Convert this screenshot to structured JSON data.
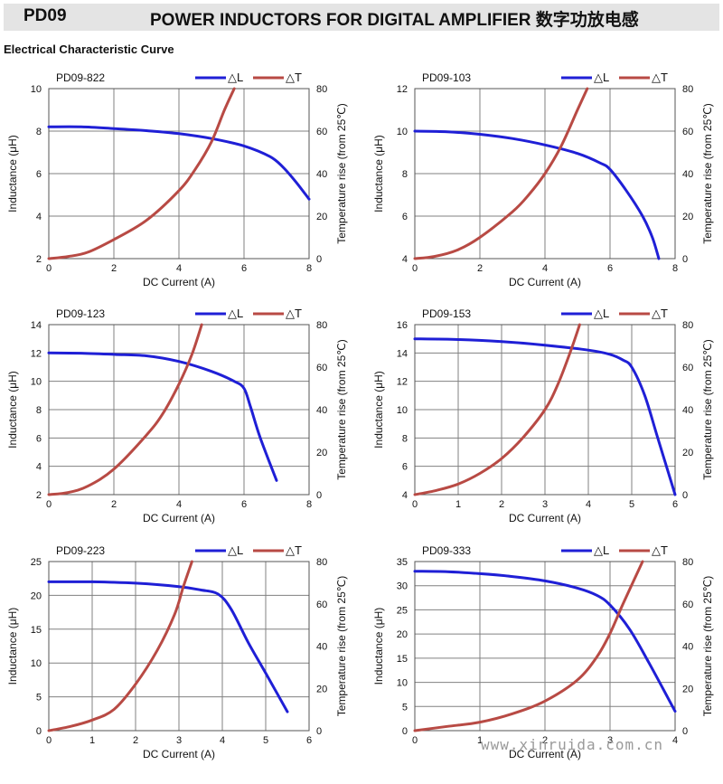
{
  "header": {
    "model": "PD09",
    "title": "POWER INDUCTORS FOR DIGITAL AMPLIFIER  数字功放电感"
  },
  "section_title": "Electrical Characteristic Curve",
  "watermark": "www.xinruida.com.cn",
  "colors": {
    "inductance": "#1f1fd6",
    "temperature": "#b84a44",
    "grid": "#808080",
    "axis": "#555555"
  },
  "legend": {
    "inductance": "△L",
    "temperature": "△T"
  },
  "axis_labels": {
    "x": "DC Current (A)",
    "y_left": "Inductance (μH)",
    "y_right": "Temperature rise (from 25℃)"
  },
  "chart_data": [
    {
      "type": "line",
      "title": "PD09-822",
      "xlim": [
        0,
        8
      ],
      "xticks": [
        0,
        2,
        4,
        6,
        8
      ],
      "ylim": [
        2,
        10
      ],
      "yticks": [
        2,
        4,
        6,
        8,
        10
      ],
      "y2lim": [
        0,
        80
      ],
      "y2ticks": [
        0,
        20,
        40,
        60,
        80
      ],
      "series": [
        {
          "name": "△L",
          "axis": "left",
          "points": [
            [
              0,
              8.2
            ],
            [
              1,
              8.2
            ],
            [
              2,
              8.12
            ],
            [
              3,
              8.02
            ],
            [
              4,
              7.88
            ],
            [
              5,
              7.65
            ],
            [
              6,
              7.3
            ],
            [
              6.8,
              6.8
            ],
            [
              7.2,
              6.3
            ],
            [
              7.6,
              5.6
            ],
            [
              8,
              4.8
            ]
          ]
        },
        {
          "name": "△T",
          "axis": "right",
          "points": [
            [
              0,
              0
            ],
            [
              0.6,
              1
            ],
            [
              1.2,
              3
            ],
            [
              2,
              9
            ],
            [
              3,
              18
            ],
            [
              4,
              32
            ],
            [
              4.5,
              42
            ],
            [
              5,
              55
            ],
            [
              5.4,
              70
            ],
            [
              5.7,
              80
            ]
          ]
        }
      ]
    },
    {
      "type": "line",
      "title": "PD09-103",
      "xlim": [
        0,
        8
      ],
      "xticks": [
        0,
        2,
        4,
        6,
        8
      ],
      "ylim": [
        4,
        12
      ],
      "yticks": [
        4,
        6,
        8,
        10,
        12
      ],
      "y2lim": [
        0,
        80
      ],
      "y2ticks": [
        0,
        20,
        40,
        60,
        80
      ],
      "series": [
        {
          "name": "△L",
          "axis": "left",
          "points": [
            [
              0,
              10.0
            ],
            [
              1,
              9.97
            ],
            [
              2,
              9.85
            ],
            [
              3,
              9.65
            ],
            [
              4,
              9.35
            ],
            [
              5,
              8.95
            ],
            [
              5.7,
              8.5
            ],
            [
              6,
              8.2
            ],
            [
              6.5,
              7.2
            ],
            [
              7,
              6.0
            ],
            [
              7.3,
              5.0
            ],
            [
              7.5,
              4.0
            ]
          ]
        },
        {
          "name": "△T",
          "axis": "right",
          "points": [
            [
              0,
              0
            ],
            [
              0.6,
              1
            ],
            [
              1.3,
              4
            ],
            [
              2,
              10
            ],
            [
              3,
              22
            ],
            [
              3.5,
              30
            ],
            [
              4,
              40
            ],
            [
              4.5,
              53
            ],
            [
              5,
              70
            ],
            [
              5.3,
              80
            ]
          ]
        }
      ]
    },
    {
      "type": "line",
      "title": "PD09-123",
      "xlim": [
        0,
        8
      ],
      "xticks": [
        0,
        2,
        4,
        6,
        8
      ],
      "ylim": [
        2,
        14
      ],
      "yticks": [
        2,
        4,
        6,
        8,
        10,
        12,
        14
      ],
      "y2lim": [
        0,
        80
      ],
      "y2ticks": [
        0,
        20,
        40,
        60,
        80
      ],
      "series": [
        {
          "name": "△L",
          "axis": "left",
          "points": [
            [
              0,
              12.0
            ],
            [
              1,
              11.98
            ],
            [
              2,
              11.9
            ],
            [
              3,
              11.8
            ],
            [
              4,
              11.4
            ],
            [
              5,
              10.7
            ],
            [
              5.7,
              10.0
            ],
            [
              6,
              9.5
            ],
            [
              6.2,
              8.2
            ],
            [
              6.5,
              6.0
            ],
            [
              7,
              3.0
            ]
          ]
        },
        {
          "name": "△T",
          "axis": "right",
          "points": [
            [
              0,
              0
            ],
            [
              0.6,
              1
            ],
            [
              1.2,
              4
            ],
            [
              2,
              12
            ],
            [
              3,
              28
            ],
            [
              3.5,
              38
            ],
            [
              4,
              52
            ],
            [
              4.4,
              66
            ],
            [
              4.7,
              80
            ]
          ]
        }
      ]
    },
    {
      "type": "line",
      "title": "PD09-153",
      "xlim": [
        0,
        6
      ],
      "xticks": [
        0,
        1,
        2,
        3,
        4,
        5,
        6
      ],
      "ylim": [
        4,
        16
      ],
      "yticks": [
        4,
        6,
        8,
        10,
        12,
        14,
        16
      ],
      "y2lim": [
        0,
        80
      ],
      "y2ticks": [
        0,
        20,
        40,
        60,
        80
      ],
      "series": [
        {
          "name": "△L",
          "axis": "left",
          "points": [
            [
              0,
              15.0
            ],
            [
              1,
              14.95
            ],
            [
              2,
              14.8
            ],
            [
              3,
              14.55
            ],
            [
              4,
              14.2
            ],
            [
              4.5,
              13.9
            ],
            [
              4.8,
              13.5
            ],
            [
              5,
              13.0
            ],
            [
              5.3,
              11.0
            ],
            [
              5.6,
              8.0
            ],
            [
              6,
              4.0
            ]
          ]
        },
        {
          "name": "△T",
          "axis": "right",
          "points": [
            [
              0,
              0
            ],
            [
              0.5,
              2
            ],
            [
              1,
              5
            ],
            [
              1.5,
              10
            ],
            [
              2,
              17
            ],
            [
              2.5,
              27
            ],
            [
              3,
              40
            ],
            [
              3.3,
              52
            ],
            [
              3.6,
              68
            ],
            [
              3.8,
              80
            ]
          ]
        }
      ]
    },
    {
      "type": "line",
      "title": "PD09-223",
      "xlim": [
        0,
        6
      ],
      "xticks": [
        0,
        1,
        2,
        3,
        4,
        5,
        6
      ],
      "ylim": [
        0,
        25
      ],
      "yticks": [
        0,
        5,
        10,
        15,
        20,
        25
      ],
      "y2lim": [
        0,
        80
      ],
      "y2ticks": [
        0,
        20,
        40,
        60,
        80
      ],
      "series": [
        {
          "name": "△L",
          "axis": "left",
          "points": [
            [
              0,
              22.0
            ],
            [
              1,
              22.0
            ],
            [
              2,
              21.8
            ],
            [
              3,
              21.3
            ],
            [
              3.5,
              20.8
            ],
            [
              3.9,
              20.2
            ],
            [
              4.2,
              18.0
            ],
            [
              4.6,
              13.0
            ],
            [
              5,
              8.5
            ],
            [
              5.5,
              2.8
            ]
          ]
        },
        {
          "name": "△T",
          "axis": "right",
          "points": [
            [
              0,
              0
            ],
            [
              0.5,
              2
            ],
            [
              1,
              5
            ],
            [
              1.5,
              10
            ],
            [
              2,
              22
            ],
            [
              2.5,
              38
            ],
            [
              2.9,
              55
            ],
            [
              3.1,
              68
            ],
            [
              3.3,
              80
            ]
          ]
        }
      ]
    },
    {
      "type": "line",
      "title": "PD09-333",
      "xlim": [
        0,
        4
      ],
      "xticks": [
        0,
        1,
        2,
        3,
        4
      ],
      "ylim": [
        0,
        35
      ],
      "yticks": [
        0,
        5,
        10,
        15,
        20,
        25,
        30,
        35
      ],
      "y2lim": [
        0,
        80
      ],
      "y2ticks": [
        0,
        20,
        40,
        60,
        80
      ],
      "series": [
        {
          "name": "△L",
          "axis": "left",
          "points": [
            [
              0,
              33.0
            ],
            [
              0.5,
              32.9
            ],
            [
              1,
              32.5
            ],
            [
              1.5,
              31.9
            ],
            [
              2,
              31.0
            ],
            [
              2.5,
              29.5
            ],
            [
              2.8,
              28.0
            ],
            [
              3,
              26.0
            ],
            [
              3.3,
              21.0
            ],
            [
              3.6,
              14.0
            ],
            [
              4,
              4.0
            ]
          ]
        },
        {
          "name": "△T",
          "axis": "right",
          "points": [
            [
              0,
              0
            ],
            [
              0.5,
              2
            ],
            [
              1,
              4
            ],
            [
              1.5,
              8
            ],
            [
              2,
              14
            ],
            [
              2.5,
              24
            ],
            [
              2.8,
              35
            ],
            [
              3,
              46
            ],
            [
              3.2,
              60
            ],
            [
              3.5,
              80
            ]
          ]
        }
      ]
    }
  ]
}
